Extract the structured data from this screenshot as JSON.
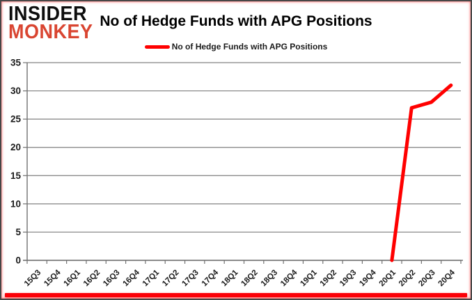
{
  "branding": {
    "logo_line1": "INSIDER",
    "logo_line2": "MONKEY",
    "logo_color_primary": "#0d0d0d",
    "logo_color_secondary": "#d94531"
  },
  "header": {
    "title": "No of Hedge Funds with APG Positions"
  },
  "legend": {
    "label": "No of Hedge Funds with APG Positions",
    "line_color": "#ff0000"
  },
  "chart_data": {
    "type": "line",
    "title": "No of Hedge Funds with APG Positions",
    "categories": [
      "15Q3",
      "15Q4",
      "16Q1",
      "16Q2",
      "16Q3",
      "16Q4",
      "17Q1",
      "17Q2",
      "17Q3",
      "17Q4",
      "18Q1",
      "18Q2",
      "18Q3",
      "18Q4",
      "19Q1",
      "19Q2",
      "19Q3",
      "19Q4",
      "20Q1",
      "20Q2",
      "20Q3",
      "20Q4"
    ],
    "series": [
      {
        "name": "No of Hedge Funds with APG Positions",
        "color": "#ff0000",
        "values": [
          null,
          null,
          null,
          null,
          null,
          null,
          null,
          null,
          null,
          null,
          null,
          null,
          null,
          null,
          null,
          null,
          null,
          null,
          0,
          27,
          28,
          31
        ]
      }
    ],
    "xlabel": "",
    "ylabel": "",
    "ylim": [
      0,
      35
    ],
    "yticks": [
      0,
      5,
      10,
      15,
      20,
      25,
      30,
      35
    ],
    "grid": true,
    "legend_position": "top",
    "gridline_color": "#808080",
    "axis_color": "#707070",
    "tick_label_color": "#1a1a1a"
  }
}
